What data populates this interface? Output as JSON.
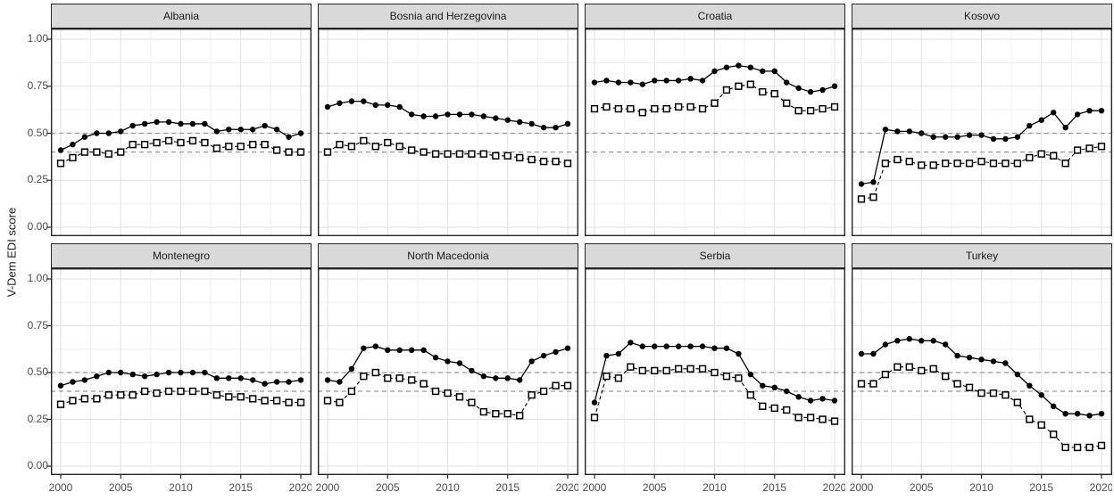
{
  "figure": {
    "y_axis_title": "V-Dem EDI score",
    "y_ticks": [
      {
        "label": "1.00",
        "value": 1.0
      },
      {
        "label": "0.75",
        "value": 0.75
      },
      {
        "label": "0.50",
        "value": 0.5
      },
      {
        "label": "0.25",
        "value": 0.25
      },
      {
        "label": "0.00",
        "value": 0.0
      }
    ],
    "x_ticks": [
      {
        "label": "2000",
        "value": 2000
      },
      {
        "label": "2005",
        "value": 2005
      },
      {
        "label": "2010",
        "value": 2010
      },
      {
        "label": "2015",
        "value": 2015
      },
      {
        "label": "2020",
        "value": 2020
      }
    ],
    "colors": {
      "strip_bg": "#d9d9d9",
      "panel_border": "#262626",
      "grid_major": "#e2e2e2",
      "grid_minor": "#f0f0f0",
      "reference_line": "#999999",
      "series": "#000000",
      "tick_text": "#4d4d4d"
    }
  },
  "chart_data": {
    "type": "line",
    "layout": "facets 2 rows x 4 cols",
    "title": "",
    "xlabel": "",
    "ylabel": "V-Dem EDI score",
    "x_range": [
      2000,
      2020
    ],
    "y_range": [
      0,
      1
    ],
    "grid": "on",
    "legend": "none",
    "reference_lines": [
      0.5,
      0.4
    ],
    "years": [
      2000,
      2001,
      2002,
      2003,
      2004,
      2005,
      2006,
      2007,
      2008,
      2009,
      2010,
      2011,
      2012,
      2013,
      2014,
      2015,
      2016,
      2017,
      2018,
      2019,
      2020
    ],
    "series_styles": [
      {
        "key": "filled_circle",
        "marker": "filled-circle",
        "line": "solid"
      },
      {
        "key": "open_square",
        "marker": "open-square",
        "line": "dashed"
      }
    ],
    "facets": [
      {
        "title": "Albania",
        "filled_circle": [
          0.41,
          0.44,
          0.48,
          0.5,
          0.5,
          0.51,
          0.54,
          0.55,
          0.56,
          0.56,
          0.55,
          0.55,
          0.55,
          0.51,
          0.52,
          0.52,
          0.52,
          0.54,
          0.52,
          0.48,
          0.5
        ],
        "open_square": [
          0.34,
          0.37,
          0.4,
          0.4,
          0.39,
          0.4,
          0.44,
          0.44,
          0.45,
          0.46,
          0.45,
          0.46,
          0.45,
          0.42,
          0.43,
          0.43,
          0.44,
          0.44,
          0.41,
          0.4,
          0.4
        ]
      },
      {
        "title": "Bosnia and Herzegovina",
        "filled_circle": [
          0.64,
          0.66,
          0.67,
          0.67,
          0.65,
          0.65,
          0.64,
          0.6,
          0.59,
          0.59,
          0.6,
          0.6,
          0.6,
          0.59,
          0.58,
          0.57,
          0.56,
          0.55,
          0.53,
          0.53,
          0.55
        ],
        "open_square": [
          0.4,
          0.44,
          0.43,
          0.46,
          0.43,
          0.45,
          0.43,
          0.41,
          0.4,
          0.39,
          0.39,
          0.39,
          0.39,
          0.39,
          0.38,
          0.38,
          0.37,
          0.36,
          0.35,
          0.35,
          0.34
        ]
      },
      {
        "title": "Croatia",
        "filled_circle": [
          0.77,
          0.78,
          0.77,
          0.77,
          0.76,
          0.78,
          0.78,
          0.78,
          0.79,
          0.78,
          0.83,
          0.85,
          0.86,
          0.85,
          0.83,
          0.83,
          0.77,
          0.74,
          0.72,
          0.73,
          0.75
        ],
        "open_square": [
          0.63,
          0.64,
          0.63,
          0.63,
          0.61,
          0.63,
          0.63,
          0.64,
          0.64,
          0.63,
          0.66,
          0.73,
          0.75,
          0.76,
          0.72,
          0.71,
          0.66,
          0.62,
          0.62,
          0.63,
          0.64
        ]
      },
      {
        "title": "Kosovo",
        "filled_circle": [
          0.23,
          0.24,
          0.52,
          0.51,
          0.51,
          0.5,
          0.48,
          0.48,
          0.48,
          0.49,
          0.49,
          0.47,
          0.47,
          0.48,
          0.54,
          0.57,
          0.61,
          0.53,
          0.6,
          0.62,
          0.62
        ],
        "open_square": [
          0.15,
          0.16,
          0.34,
          0.36,
          0.35,
          0.33,
          0.33,
          0.34,
          0.34,
          0.34,
          0.35,
          0.34,
          0.34,
          0.34,
          0.37,
          0.39,
          0.38,
          0.34,
          0.41,
          0.42,
          0.43
        ]
      },
      {
        "title": "Montenegro",
        "filled_circle": [
          0.43,
          0.45,
          0.46,
          0.48,
          0.5,
          0.5,
          0.49,
          0.48,
          0.49,
          0.5,
          0.5,
          0.5,
          0.5,
          0.47,
          0.47,
          0.47,
          0.46,
          0.44,
          0.45,
          0.45,
          0.46
        ],
        "open_square": [
          0.33,
          0.35,
          0.36,
          0.36,
          0.38,
          0.38,
          0.38,
          0.4,
          0.39,
          0.4,
          0.4,
          0.4,
          0.4,
          0.38,
          0.37,
          0.37,
          0.36,
          0.35,
          0.35,
          0.34,
          0.34
        ]
      },
      {
        "title": "North Macedonia",
        "filled_circle": [
          0.46,
          0.45,
          0.52,
          0.63,
          0.64,
          0.62,
          0.62,
          0.62,
          0.62,
          0.58,
          0.56,
          0.55,
          0.51,
          0.48,
          0.47,
          0.47,
          0.46,
          0.56,
          0.59,
          0.61,
          0.63
        ],
        "open_square": [
          0.35,
          0.34,
          0.4,
          0.48,
          0.5,
          0.47,
          0.47,
          0.46,
          0.44,
          0.4,
          0.39,
          0.37,
          0.34,
          0.29,
          0.28,
          0.28,
          0.27,
          0.38,
          0.4,
          0.43,
          0.43
        ]
      },
      {
        "title": "Serbia",
        "filled_circle": [
          0.34,
          0.59,
          0.6,
          0.66,
          0.64,
          0.64,
          0.64,
          0.64,
          0.64,
          0.64,
          0.63,
          0.63,
          0.6,
          0.49,
          0.43,
          0.42,
          0.4,
          0.37,
          0.35,
          0.36,
          0.35
        ],
        "open_square": [
          0.26,
          0.48,
          0.47,
          0.53,
          0.51,
          0.51,
          0.51,
          0.52,
          0.52,
          0.52,
          0.5,
          0.48,
          0.47,
          0.38,
          0.32,
          0.31,
          0.3,
          0.26,
          0.26,
          0.25,
          0.24
        ]
      },
      {
        "title": "Turkey",
        "filled_circle": [
          0.6,
          0.6,
          0.65,
          0.67,
          0.68,
          0.67,
          0.67,
          0.65,
          0.59,
          0.58,
          0.57,
          0.56,
          0.55,
          0.49,
          0.43,
          0.38,
          0.32,
          0.28,
          0.28,
          0.27,
          0.28
        ],
        "open_square": [
          0.44,
          0.44,
          0.49,
          0.53,
          0.53,
          0.51,
          0.52,
          0.48,
          0.44,
          0.42,
          0.39,
          0.39,
          0.38,
          0.34,
          0.25,
          0.22,
          0.17,
          0.1,
          0.1,
          0.1,
          0.11
        ]
      }
    ]
  }
}
